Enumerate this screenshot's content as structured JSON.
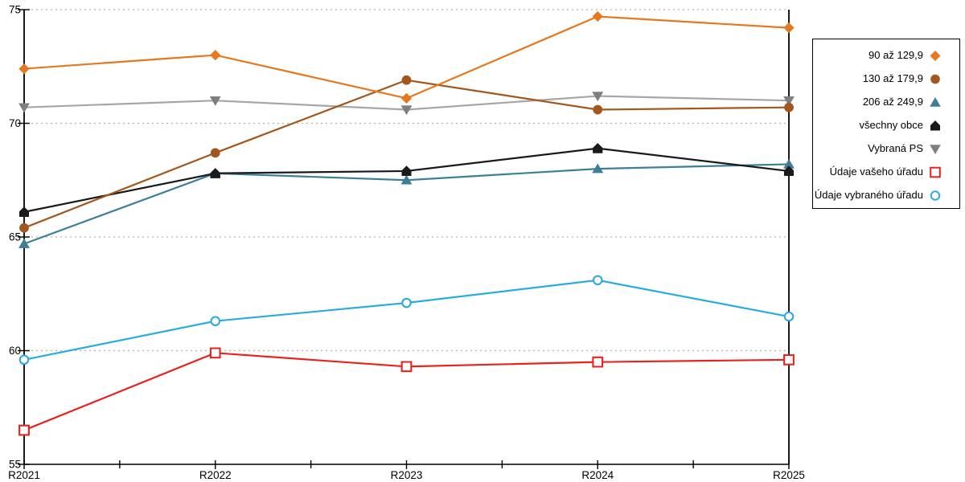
{
  "chart_data": {
    "type": "line",
    "title": "",
    "xlabel": "",
    "ylabel": "",
    "x_categories": [
      "R2021",
      "R2022",
      "R2023",
      "R2024",
      "R2025"
    ],
    "ylim": [
      55,
      75
    ],
    "y_ticks": [
      55,
      60,
      65,
      70,
      75
    ],
    "grid": "horizontal dashed, minor x ticks between categories",
    "legend_position": "right outside, bordered box",
    "series": [
      {
        "name": "90 až 129,9",
        "marker": "diamond",
        "color": "#E6781E",
        "line_color": "#E6781E",
        "values": [
          72.4,
          73.0,
          71.1,
          74.7,
          74.2
        ]
      },
      {
        "name": "130 až 179,9",
        "marker": "circle",
        "color": "#A3571C",
        "line_color": "#A3571C",
        "values": [
          65.4,
          68.7,
          71.9,
          70.6,
          70.7
        ]
      },
      {
        "name": "206 až 249,9",
        "marker": "triangle-up",
        "color": "#3C7F96",
        "line_color": "#3C7F96",
        "values": [
          64.7,
          67.8,
          67.5,
          68.0,
          68.2
        ]
      },
      {
        "name": "všechny obce",
        "marker": "pentagon",
        "color": "#1A1A1A",
        "line_color": "#1A1A1A",
        "values": [
          66.1,
          67.8,
          67.9,
          68.9,
          67.9
        ]
      },
      {
        "name": "Vybraná PS",
        "marker": "triangle-down",
        "color": "#7F7F7F",
        "line_color": "#A6A6A6",
        "values": [
          70.7,
          71.0,
          70.6,
          71.2,
          71.0
        ]
      },
      {
        "name": "Údaje vašeho úřadu",
        "marker": "square-open",
        "color": "#E8231E",
        "line_color": "#E8231E",
        "values": [
          56.5,
          59.9,
          59.3,
          59.5,
          59.6
        ]
      },
      {
        "name": "Údaje vybraného úřadu",
        "marker": "circle-open",
        "color": "#29ABE2",
        "line_color": "#29ABE2",
        "values": [
          59.6,
          61.3,
          62.1,
          63.1,
          61.5
        ]
      }
    ],
    "draw_order": [
      4,
      2,
      3,
      1,
      0,
      5,
      6
    ]
  },
  "axes": {
    "y_tick_labels": [
      "55",
      "60",
      "65",
      "70",
      "75"
    ],
    "x_tick_labels": [
      "R2021",
      "R2022",
      "R2023",
      "R2024",
      "R2025"
    ]
  },
  "colors": {
    "grid": "#B3B3B3",
    "axis": "#000000",
    "text": "#000000",
    "background": "#FFFFFF"
  }
}
